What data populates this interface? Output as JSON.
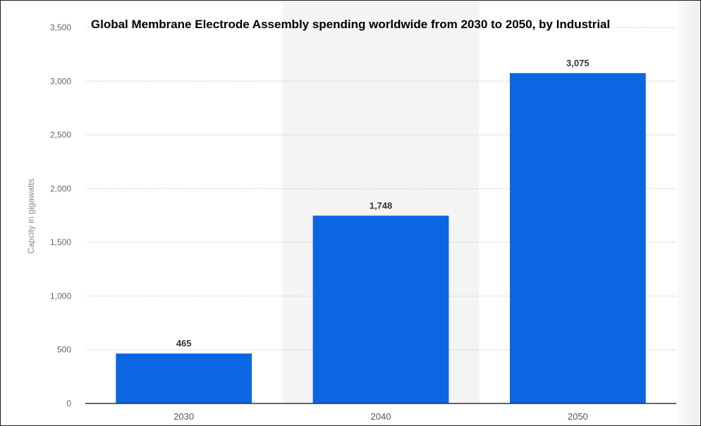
{
  "chart_data": {
    "type": "bar",
    "title": "Global Membrane  Electrode Assembly spending worldwide from 2030 to 2050, by Industrial",
    "xlabel": "",
    "ylabel": "Capcity in gigawatts",
    "categories": [
      "2030",
      "2040",
      "2050"
    ],
    "values": [
      465,
      1748,
      3075
    ],
    "value_labels": [
      "465",
      "1,748",
      "3,075"
    ],
    "ylim": [
      0,
      3500
    ],
    "y_ticks": [
      0,
      500,
      1000,
      1500,
      2000,
      2500,
      3000,
      3500
    ],
    "y_tick_labels": [
      "0",
      "500",
      "1,000",
      "1,500",
      "2,000",
      "2,500",
      "3,000",
      "3,500"
    ],
    "grid": true,
    "highlighted_category": "2040",
    "bar_color": "#0b66e4",
    "highlight_band_color": "#f4f4f4",
    "gridline_color": "#cccccc"
  }
}
